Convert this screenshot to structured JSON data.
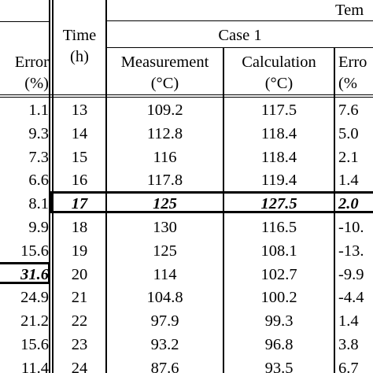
{
  "header": {
    "group_partial": "Tem",
    "case_label": "Case 1",
    "left_error_line1": "Error",
    "left_error_line2": "(%)",
    "time_line1": "Time",
    "time_line2": "(h)",
    "measurement_line1": "Measurement",
    "measurement_line2": "(°C)",
    "calculation_line1": "Calculation",
    "calculation_line2": "(°C)",
    "right_error_line1": "Erro",
    "right_error_line2": "(%"
  },
  "rows": [
    {
      "left_error": "1.1",
      "time": "13",
      "measurement": "109.2",
      "calculation": "117.5",
      "error": "7.6"
    },
    {
      "left_error": "9.3",
      "time": "14",
      "measurement": "112.8",
      "calculation": "118.4",
      "error": "5.0"
    },
    {
      "left_error": "7.3",
      "time": "15",
      "measurement": "116",
      "calculation": "118.4",
      "error": "2.1"
    },
    {
      "left_error": "6.6",
      "time": "16",
      "measurement": "117.8",
      "calculation": "119.4",
      "error": "1.4"
    },
    {
      "left_error": "8.1",
      "time": "17",
      "measurement": "125",
      "calculation": "127.5",
      "error": "2.0"
    },
    {
      "left_error": "9.9",
      "time": "18",
      "measurement": "130",
      "calculation": "116.5",
      "error": "-10."
    },
    {
      "left_error": "15.6",
      "time": "19",
      "measurement": "125",
      "calculation": "108.1",
      "error": "-13."
    },
    {
      "left_error": "31.6",
      "time": "20",
      "measurement": "114",
      "calculation": "102.7",
      "error": "-9.9"
    },
    {
      "left_error": "24.9",
      "time": "21",
      "measurement": "104.8",
      "calculation": "100.2",
      "error": "-4.4"
    },
    {
      "left_error": "21.2",
      "time": "22",
      "measurement": "97.9",
      "calculation": "99.3",
      "error": "1.4"
    },
    {
      "left_error": "15.6",
      "time": "23",
      "measurement": "93.2",
      "calculation": "96.8",
      "error": "3.8"
    },
    {
      "left_error": "11.4",
      "time": "24",
      "measurement": "87.6",
      "calculation": "93.5",
      "error": "6.7"
    }
  ]
}
